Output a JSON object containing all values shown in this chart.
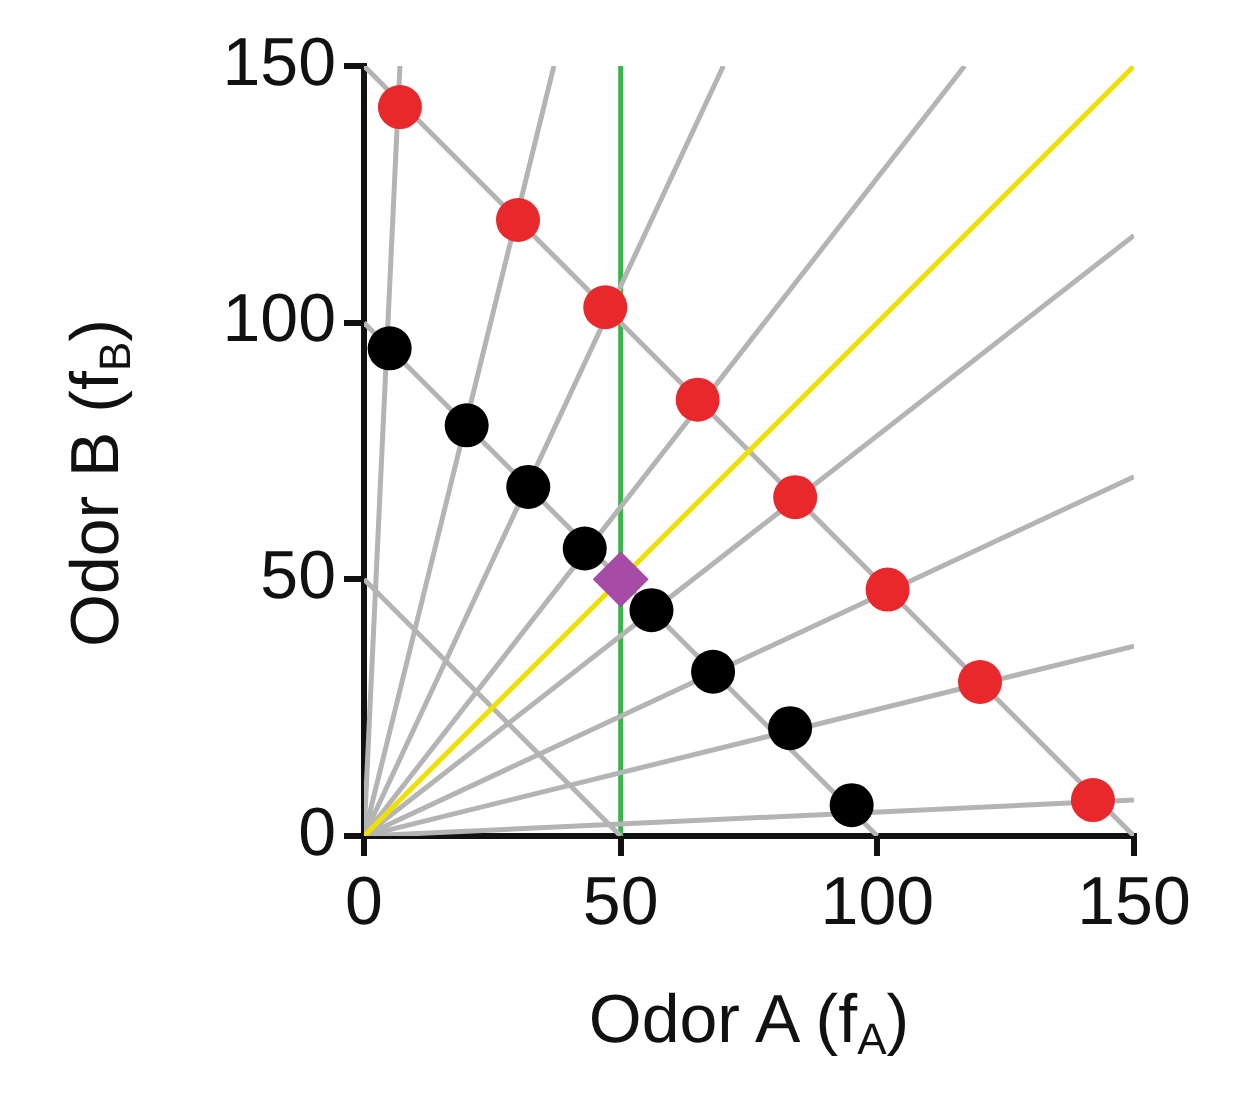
{
  "chart_data": {
    "type": "scatter",
    "xlabel": "Odor A (f$_{A}$)",
    "ylabel": "Odor B (f$_{B}$)",
    "xlim": [
      0,
      150
    ],
    "ylim": [
      0,
      150
    ],
    "xticks": [
      0,
      50,
      100,
      150
    ],
    "yticks": [
      0,
      50,
      100,
      150
    ],
    "grid": false,
    "legend": false,
    "ref_lines": [
      {
        "axis": "x",
        "value": 50,
        "color": "#3cb44b"
      }
    ],
    "series": [
      {
        "type": "line",
        "color": "#b4b4b4",
        "marker": "none",
        "x": [
          0,
          150
        ],
        "values": [
          150,
          0
        ]
      },
      {
        "type": "line",
        "color": "#b4b4b4",
        "marker": "none",
        "x": [
          0,
          100
        ],
        "values": [
          100,
          0
        ]
      },
      {
        "type": "line",
        "color": "#b4b4b4",
        "marker": "none",
        "x": [
          0,
          50
        ],
        "values": [
          50,
          0
        ]
      },
      {
        "type": "line",
        "color": "#b4b4b4",
        "marker": "none",
        "x": [
          0,
          7
        ],
        "values": [
          0,
          150
        ]
      },
      {
        "type": "line",
        "color": "#b4b4b4",
        "marker": "none",
        "x": [
          0,
          37
        ],
        "values": [
          0,
          150
        ]
      },
      {
        "type": "line",
        "color": "#b4b4b4",
        "marker": "none",
        "x": [
          0,
          70
        ],
        "values": [
          0,
          150
        ]
      },
      {
        "type": "line",
        "color": "#b4b4b4",
        "marker": "none",
        "x": [
          0,
          117
        ],
        "values": [
          0,
          150
        ]
      },
      {
        "type": "line",
        "color": "#b4b4b4",
        "marker": "none",
        "x": [
          0,
          150
        ],
        "values": [
          0,
          117
        ]
      },
      {
        "type": "line",
        "color": "#b4b4b4",
        "marker": "none",
        "x": [
          0,
          150
        ],
        "values": [
          0,
          70
        ]
      },
      {
        "type": "line",
        "color": "#b4b4b4",
        "marker": "none",
        "x": [
          0,
          150
        ],
        "values": [
          0,
          37
        ]
      },
      {
        "type": "line",
        "color": "#b4b4b4",
        "marker": "none",
        "x": [
          0,
          150
        ],
        "values": [
          0,
          7
        ]
      },
      {
        "type": "line",
        "color": "#f0e000",
        "marker": "none",
        "x": [
          0,
          150
        ],
        "values": [
          0,
          150
        ]
      },
      {
        "color": "#e8282a",
        "marker": "circle",
        "x": [
          7,
          30,
          47,
          65,
          84,
          102,
          120,
          142
        ],
        "values": [
          142,
          120,
          103,
          85,
          66,
          48,
          30,
          7
        ]
      },
      {
        "color": "#000000",
        "marker": "circle",
        "x": [
          5,
          20,
          32,
          43,
          56,
          68,
          83,
          95
        ],
        "values": [
          95,
          80,
          68,
          56,
          44,
          32,
          21,
          6
        ]
      },
      {
        "color": "#a64ca6",
        "marker": "diamond",
        "x": [
          50
        ],
        "values": [
          50
        ]
      }
    ]
  }
}
